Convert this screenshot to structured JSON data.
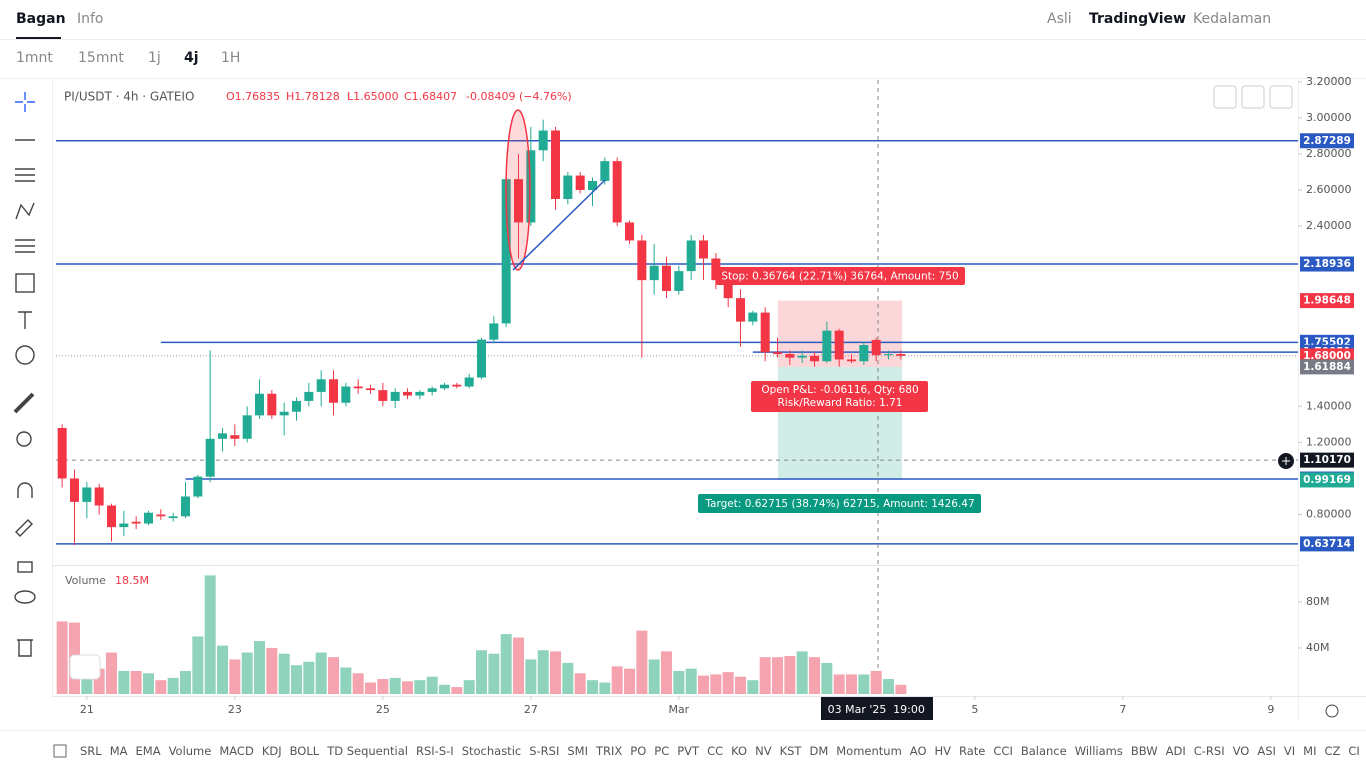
{
  "nav": {
    "tabs": [
      "Bagan",
      "Info"
    ],
    "views": [
      "Asli",
      "TradingView",
      "Kedalaman"
    ]
  },
  "toolbar": {
    "intervals": [
      "1mnt",
      "15mnt",
      "1j",
      "4j",
      "1H"
    ]
  },
  "indicators": [
    "SRL",
    "MA",
    "EMA",
    "Volume",
    "MACD",
    "KDJ",
    "BOLL",
    "TD Sequential",
    "RSI-S-I",
    "Stochastic",
    "S-RSI",
    "SMI",
    "TRIX",
    "PO",
    "PC",
    "PVT",
    "CC",
    "KO",
    "NV",
    "KST",
    "DM",
    "Momentum",
    "AO",
    "HV",
    "Rate",
    "CCI",
    "Balance",
    "Williams",
    "BBW",
    "ADI",
    "C-RSI",
    "VO",
    "ASI",
    "VI",
    "MI",
    "CZ",
    "CI"
  ],
  "chart_data": {
    "type": "candlestick",
    "symbol": "PI/USDT · 4h · GATEIO",
    "legend_ohlc": [
      "O1.76835",
      "H1.78128",
      "L1.65000",
      "C1.68407",
      "-0.08409 (−4.76%)"
    ],
    "up_color": "#22ab94",
    "down_color": "#f23645",
    "volume_up_color": "#8fd3bd",
    "volume_down_color": "#f5a3ae",
    "level_color": "#2b59c3",
    "xlim": [
      -0.5,
      100.2
    ],
    "xticks": [
      {
        "value": 2,
        "label": "21"
      },
      {
        "value": 14,
        "label": "23"
      },
      {
        "value": 26,
        "label": "25"
      },
      {
        "value": 38,
        "label": "27"
      },
      {
        "value": 50,
        "label": "Mar"
      },
      {
        "value": 74,
        "label": "5"
      },
      {
        "value": 86,
        "label": "7"
      },
      {
        "value": 98,
        "label": "9"
      }
    ],
    "ylim": [
      0.52,
      3.21
    ],
    "yticks": [
      {
        "value": 3.2,
        "label": "3.20000"
      },
      {
        "value": 3.0,
        "label": "3.00000"
      },
      {
        "value": 2.8,
        "label": "2.80000"
      },
      {
        "value": 2.6,
        "label": "2.60000"
      },
      {
        "value": 2.4,
        "label": "2.40000"
      },
      {
        "value": 1.4,
        "label": "1.40000"
      },
      {
        "value": 1.2,
        "label": "1.20000"
      },
      {
        "value": 0.8,
        "label": "0.80000"
      }
    ],
    "open": [
      1.28,
      1.0,
      0.87,
      0.95,
      0.85,
      0.73,
      0.76,
      0.75,
      0.8,
      0.78,
      0.79,
      0.9,
      1.01,
      1.22,
      1.24,
      1.22,
      1.35,
      1.47,
      1.35,
      1.37,
      1.43,
      1.48,
      1.55,
      1.42,
      1.51,
      1.5,
      1.49,
      1.43,
      1.48,
      1.46,
      1.48,
      1.5,
      1.52,
      1.51,
      1.56,
      1.77,
      1.86,
      2.66,
      2.42,
      2.82,
      2.93,
      2.55,
      2.68,
      2.6,
      2.65,
      2.76,
      2.42,
      2.32,
      2.1,
      2.18,
      2.04,
      2.15,
      2.32,
      2.22,
      2.1,
      2.0,
      1.87,
      1.92,
      1.7,
      1.69,
      1.67,
      1.68,
      1.65,
      1.82,
      1.66,
      1.65,
      1.76835,
      1.684,
      1.69
    ],
    "high": [
      1.3,
      1.05,
      0.98,
      0.97,
      0.86,
      0.82,
      0.79,
      0.82,
      0.83,
      0.81,
      0.98,
      1.02,
      1.71,
      1.28,
      1.3,
      1.4,
      1.55,
      1.49,
      1.42,
      1.45,
      1.53,
      1.6,
      1.6,
      1.53,
      1.55,
      1.52,
      1.53,
      1.5,
      1.5,
      1.49,
      1.51,
      1.53,
      1.53,
      1.58,
      1.78,
      1.9,
      2.68,
      2.8,
      2.95,
      2.99,
      2.95,
      2.7,
      2.7,
      2.67,
      2.78,
      2.78,
      2.43,
      2.35,
      2.3,
      2.23,
      2.18,
      2.35,
      2.35,
      2.25,
      2.13,
      2.05,
      1.93,
      1.95,
      1.78,
      1.71,
      1.71,
      1.7,
      1.87,
      1.83,
      1.69,
      1.76,
      1.78128,
      1.71,
      1.71
    ],
    "low": [
      0.95,
      0.63,
      0.78,
      0.8,
      0.65,
      0.68,
      0.72,
      0.74,
      0.77,
      0.76,
      0.78,
      0.89,
      0.98,
      1.15,
      1.18,
      1.2,
      1.33,
      1.33,
      1.24,
      1.32,
      1.4,
      1.4,
      1.35,
      1.4,
      1.47,
      1.47,
      1.4,
      1.39,
      1.44,
      1.44,
      1.46,
      1.49,
      1.5,
      1.5,
      1.55,
      1.75,
      1.84,
      2.22,
      2.4,
      2.76,
      2.49,
      2.52,
      2.58,
      2.51,
      2.63,
      2.4,
      2.3,
      1.67,
      2.02,
      2.0,
      2.02,
      2.1,
      2.1,
      2.05,
      1.95,
      1.73,
      1.85,
      1.65,
      1.67,
      1.63,
      1.64,
      1.62,
      1.64,
      1.62,
      1.64,
      1.63,
      1.65,
      1.66,
      1.66
    ],
    "close": [
      1.0,
      0.87,
      0.95,
      0.85,
      0.73,
      0.75,
      0.75,
      0.81,
      0.79,
      0.79,
      0.9,
      1.01,
      1.22,
      1.25,
      1.22,
      1.35,
      1.47,
      1.35,
      1.37,
      1.43,
      1.48,
      1.55,
      1.42,
      1.51,
      1.5,
      1.49,
      1.43,
      1.48,
      1.46,
      1.48,
      1.5,
      1.52,
      1.51,
      1.56,
      1.77,
      1.86,
      2.66,
      2.42,
      2.82,
      2.93,
      2.55,
      2.68,
      2.6,
      2.65,
      2.76,
      2.42,
      2.32,
      2.1,
      2.18,
      2.04,
      2.15,
      2.32,
      2.22,
      2.1,
      2.0,
      1.87,
      1.92,
      1.7,
      1.69,
      1.67,
      1.68,
      1.65,
      1.82,
      1.66,
      1.65,
      1.74,
      1.68407,
      1.69,
      1.68
    ],
    "volume_title": "Volume",
    "volume_value": "18.5M",
    "volume": [
      63,
      62,
      15,
      22,
      36,
      20,
      20,
      18,
      12,
      14,
      20,
      50,
      103,
      42,
      30,
      36,
      46,
      40,
      35,
      25,
      28,
      36,
      32,
      23,
      18,
      10,
      13,
      14,
      11,
      12,
      15,
      8,
      6,
      12,
      38,
      35,
      52,
      49,
      30,
      38,
      37,
      27,
      18,
      12,
      10,
      24,
      22,
      55,
      30,
      37,
      20,
      22,
      16,
      17,
      19,
      15,
      12,
      32,
      32,
      33,
      37,
      32,
      27,
      17,
      17,
      17,
      20,
      13,
      8
    ],
    "volume_ylim": [
      0,
      112
    ],
    "volume_yticks": [
      {
        "value": 80,
        "label": "80M"
      },
      {
        "value": 40,
        "label": "40M"
      }
    ],
    "levels": [
      2.87289,
      2.18936,
      1.75502,
      1.70051,
      0.99678,
      0.63714
    ],
    "last_price": {
      "value": 1.68,
      "label": "1.68000"
    },
    "position": {
      "stop": 1.98648,
      "entry": 1.61884,
      "target": 0.99169,
      "stop_text": "Stop: 0.36764 (22.71%) 36764, Amount: 750",
      "pnl_text": "Open P&L: -0.06116, Qty: 680",
      "rr_text": "Risk/Reward Ratio: 1.71",
      "target_text": "Target: 0.62715 (38.74%) 62715, Amount: 1426.47"
    },
    "crosshair": {
      "price": {
        "value": 1.1017,
        "label": "1.10170"
      },
      "date": "03 Mar '25",
      "time": "19:00"
    }
  }
}
